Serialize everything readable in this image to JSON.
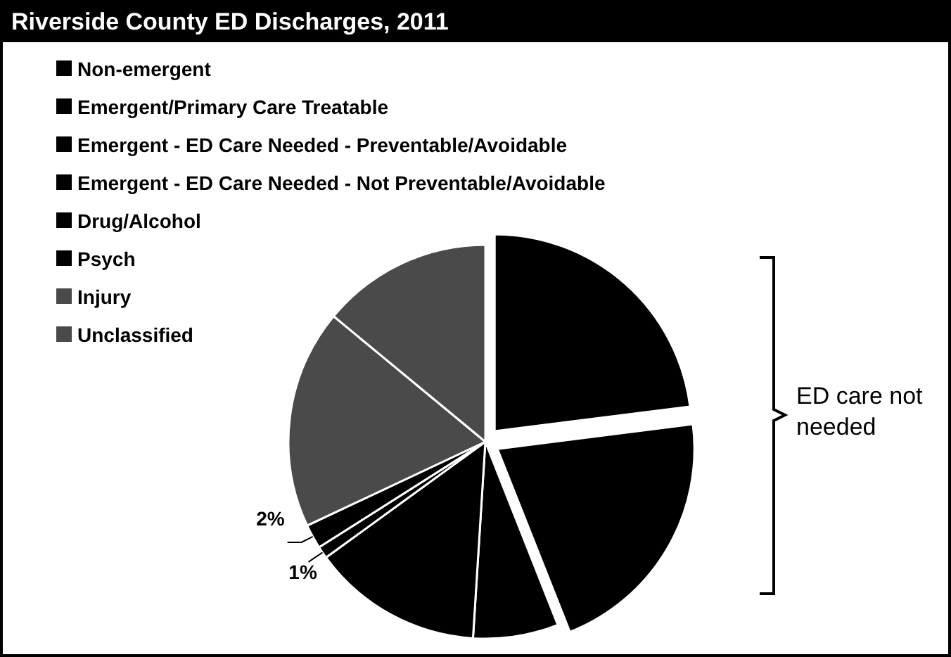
{
  "chart_data": {
    "type": "pie",
    "title": "Riverside County ED Discharges, 2011",
    "categories": [
      "Non-emergent",
      "Emergent/Primary Care Treatable",
      "Emergent - ED Care Needed - Preventable/Avoidable",
      "Emergent - ED Care Needed - Not Preventable/Avoidable",
      "Drug/Alcohol",
      "Psych",
      "Injury",
      "Unclassified"
    ],
    "values": [
      23,
      21,
      7,
      14,
      1,
      2,
      18,
      14
    ],
    "colors": [
      "#000000",
      "#000000",
      "#000000",
      "#000000",
      "#000000",
      "#000000",
      "#4a4a4a",
      "#4a4a4a"
    ],
    "value_labels": [
      null,
      null,
      null,
      null,
      "1%",
      "2%",
      null,
      null
    ],
    "legend": "top left",
    "annotations": [
      "ED care not needed"
    ]
  }
}
